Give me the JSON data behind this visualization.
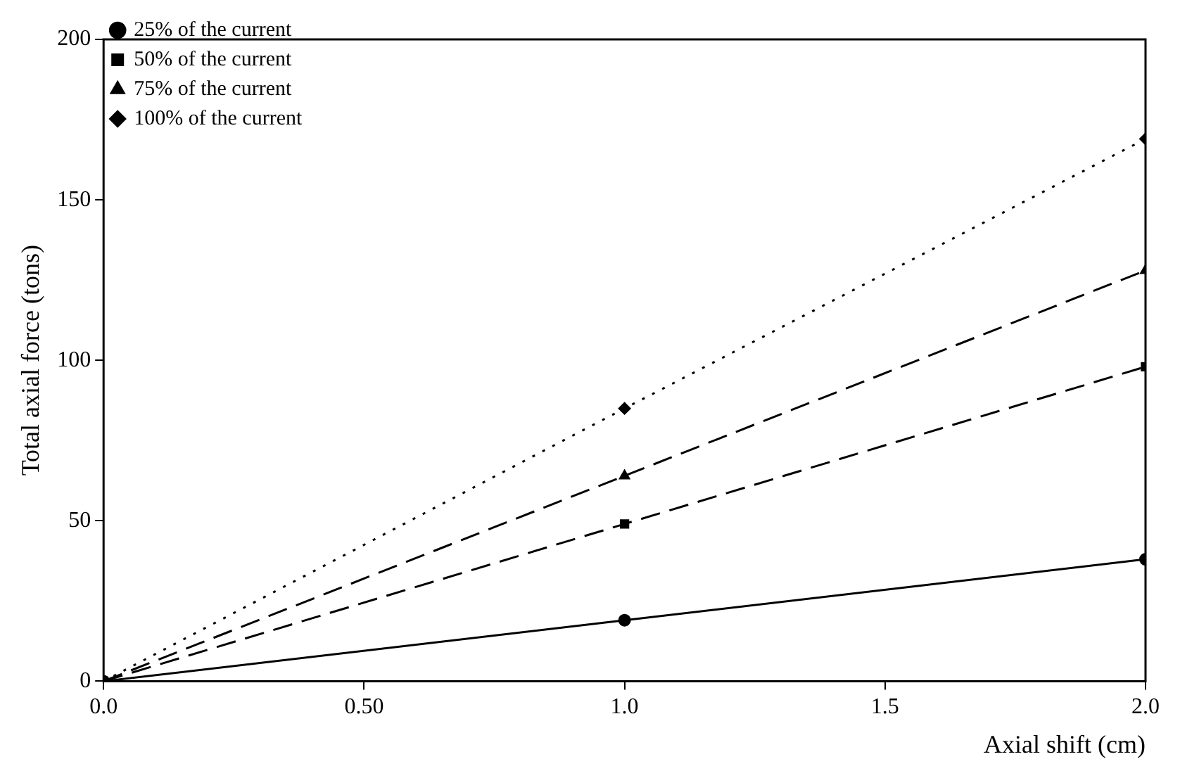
{
  "chart_data": {
    "type": "line",
    "xlabel": "Axial shift (cm)",
    "ylabel": "Total axial force (tons)",
    "x": [
      0,
      1,
      2
    ],
    "series": [
      {
        "name": "25% of the current",
        "color": "#000000",
        "values": [
          0,
          19,
          38
        ],
        "marker": "circle",
        "line_style": "solid"
      },
      {
        "name": "50% of the current",
        "color": "#000000",
        "values": [
          0,
          49,
          98
        ],
        "marker": "square",
        "line_style": "dashed"
      },
      {
        "name": "75% of the current",
        "color": "#000000",
        "values": [
          0,
          64,
          128
        ],
        "marker": "triangle",
        "line_style": "dashed"
      },
      {
        "name": "100% of the current",
        "color": "#000000",
        "values": [
          0,
          85,
          169
        ],
        "marker": "diamond",
        "line_style": "dotted"
      }
    ],
    "xlim": [
      0,
      2
    ],
    "xticks": [
      {
        "value": 0,
        "label": "0.0"
      },
      {
        "value": 0.5,
        "label": "0.50"
      },
      {
        "value": 1,
        "label": "1.0"
      },
      {
        "value": 1.5,
        "label": "1.5"
      },
      {
        "value": 2,
        "label": "2.0"
      }
    ],
    "ylim": [
      0,
      200
    ],
    "yticks": [
      0,
      50,
      100,
      150,
      200
    ],
    "grid": false,
    "legend": "top left"
  }
}
